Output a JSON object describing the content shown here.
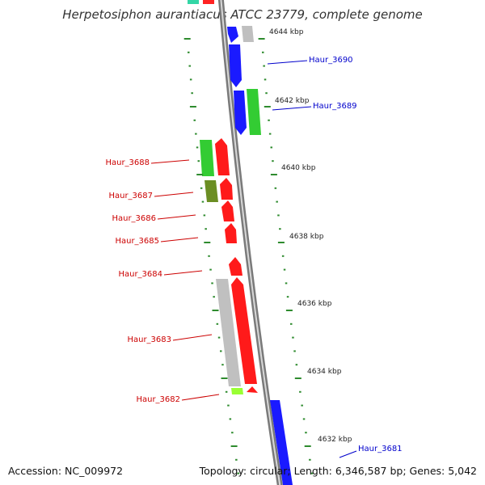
{
  "title": "Herpetosiphon aurantiacus ATCC 23779, complete genome",
  "footer": {
    "accession": "Accession: NC_009972",
    "summary": "Topology: circular; Length: 6,346,587 bp; Genes: 5,042"
  },
  "colors": {
    "backbone": "#8a8a8a",
    "tick": "#2e8b2e",
    "forward_label": "#0000cc",
    "reverse_label": "#cc0000"
  },
  "kbp_labels": [
    "4644 kbp",
    "4642 kbp",
    "4640 kbp",
    "4638 kbp",
    "4636 kbp",
    "4634 kbp",
    "4632 kbp"
  ],
  "gene_labels": {
    "forward": [
      "Haur_3690",
      "Haur_3689",
      "Haur_3681"
    ],
    "reverse": [
      "Haur_3688",
      "Haur_3687",
      "Haur_3686",
      "Haur_3685",
      "Haur_3684",
      "Haur_3683",
      "Haur_3682"
    ]
  }
}
